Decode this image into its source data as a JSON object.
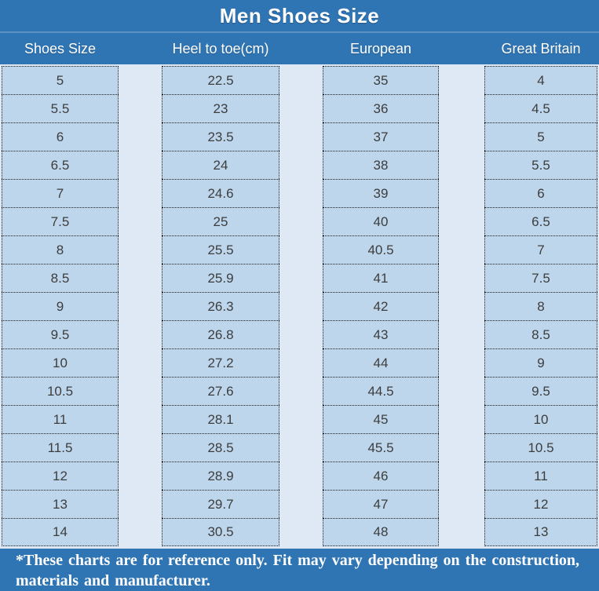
{
  "chart_data": {
    "type": "table",
    "title": "Men Shoes Size",
    "columns": [
      "Shoes Size",
      "Heel to toe(cm)",
      "European",
      "Great Britain"
    ],
    "rows": [
      [
        "5",
        "22.5",
        "35",
        "4"
      ],
      [
        "5.5",
        "23",
        "36",
        "4.5"
      ],
      [
        "6",
        "23.5",
        "37",
        "5"
      ],
      [
        "6.5",
        "24",
        "38",
        "5.5"
      ],
      [
        "7",
        "24.6",
        "39",
        "6"
      ],
      [
        "7.5",
        "25",
        "40",
        "6.5"
      ],
      [
        "8",
        "25.5",
        "40.5",
        "7"
      ],
      [
        "8.5",
        "25.9",
        "41",
        "7.5"
      ],
      [
        "9",
        "26.3",
        "42",
        "8"
      ],
      [
        "9.5",
        "26.8",
        "43",
        "8.5"
      ],
      [
        "10",
        "27.2",
        "44",
        "9"
      ],
      [
        "10.5",
        "27.6",
        "44.5",
        "9.5"
      ],
      [
        "11",
        "28.1",
        "45",
        "10"
      ],
      [
        "11.5",
        "28.5",
        "45.5",
        "10.5"
      ],
      [
        "12",
        "28.9",
        "46",
        "11"
      ],
      [
        "13",
        "29.7",
        "47",
        "12"
      ],
      [
        "14",
        "30.5",
        "48",
        "13"
      ]
    ],
    "footnote": "*These charts are for reference only. Fit may vary depending on the construction, materials and manufacturer.",
    "layout_hints": {
      "grid": "dotted cell borders",
      "legend": "none"
    }
  },
  "colors": {
    "header_bg": "#2F74B3",
    "cell_bg": "#BDD6EC",
    "gap_bg": "#DEE9F5",
    "cell_text": "#3D3D3D",
    "header_text": "#FFFFFF"
  }
}
